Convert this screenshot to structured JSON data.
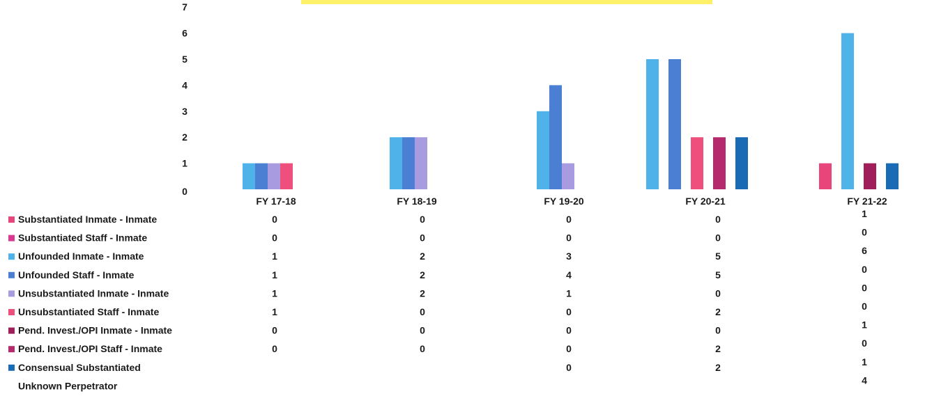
{
  "chart_data": {
    "type": "bar",
    "categories": [
      "FY 17-18",
      "FY 18-19",
      "FY 19-20",
      "FY 20-21",
      "FY 21-22"
    ],
    "y_ticks": [
      "0",
      "1",
      "2",
      "3",
      "4",
      "5",
      "6",
      "7"
    ],
    "ylim": [
      0,
      7
    ],
    "grid": false,
    "legend_position": "left (data table rows)",
    "series": [
      {
        "name": "Substantiated Inmate - Inmate",
        "color": "#e8457a",
        "values": [
          0,
          0,
          0,
          0,
          1
        ]
      },
      {
        "name": "Substantiated Staff - Inmate",
        "color": "#d93a8f",
        "values": [
          0,
          0,
          0,
          0,
          0
        ]
      },
      {
        "name": "Unfounded Inmate - Inmate",
        "color": "#4fb3ea",
        "values": [
          1,
          2,
          3,
          5,
          6
        ]
      },
      {
        "name": "Unfounded Staff - Inmate",
        "color": "#4a7fd4",
        "values": [
          1,
          2,
          4,
          5,
          0
        ]
      },
      {
        "name": "Unsubstantiated Inmate - Inmate",
        "color": "#a99be0",
        "values": [
          1,
          2,
          1,
          0,
          0
        ]
      },
      {
        "name": "Unsubstantiated Staff - Inmate",
        "color": "#ef4f7c",
        "values": [
          1,
          0,
          0,
          2,
          0
        ]
      },
      {
        "name": "Pend. Invest./OPI Inmate - Inmate",
        "color": "#a01f5a",
        "values": [
          0,
          0,
          0,
          0,
          1
        ]
      },
      {
        "name": "Pend. Invest./OPI Staff - Inmate",
        "color": "#b52a6d",
        "values": [
          0,
          0,
          0,
          2,
          0
        ]
      },
      {
        "name": "Consensual Substantiated",
        "color": "#1a6bb5",
        "values": [
          null,
          null,
          0,
          2,
          1
        ]
      }
    ],
    "extra_row": {
      "name": "Unknown Perpetrator",
      "values": [
        null,
        null,
        null,
        null,
        4
      ]
    },
    "highlight_color": "#fff06a"
  }
}
